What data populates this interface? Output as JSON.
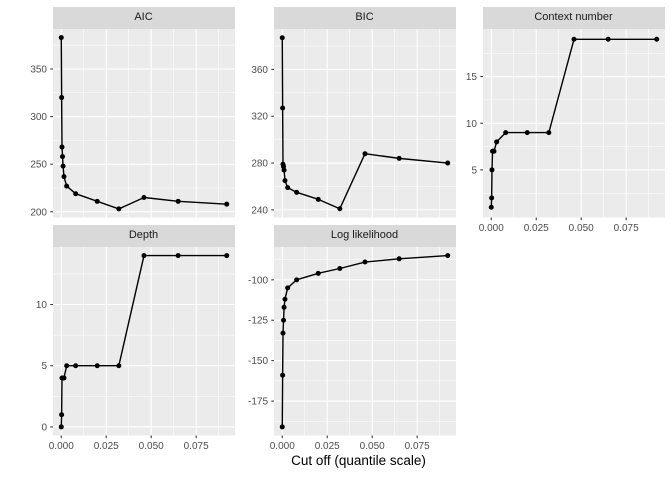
{
  "figure": {
    "colors": {
      "background": "#FFFFFF",
      "panel_background": "#EBEBEB",
      "strip_background": "#D9D9D9",
      "gridline": "#FFFFFF",
      "axis_text": "#4D4D4D",
      "strip_text": "#1A1A1A",
      "tick_mark": "#333333",
      "line": "#000000",
      "point": "#000000"
    }
  },
  "x_axis": {
    "title": "Cut off (quantile scale)",
    "ticks": [
      0,
      0.025,
      0.05,
      0.075
    ],
    "tick_labels": [
      "0.000",
      "0.025",
      "0.050",
      "0.075"
    ],
    "minor_ticks": [
      0.0125,
      0.0375,
      0.0625,
      0.0875
    ],
    "xlim": [
      -0.0046,
      0.0966
    ]
  },
  "chart_data": [
    {
      "type": "line",
      "title": "AIC",
      "x": [
        0,
        0.0002,
        0.0004,
        0.0007,
        0.001,
        0.0015,
        0.003,
        0.008,
        0.02,
        0.032,
        0.046,
        0.065,
        0.092
      ],
      "y": [
        383,
        320,
        268,
        258,
        248,
        237,
        227,
        219,
        211,
        203,
        215,
        211,
        208
      ],
      "y_ticks": [
        200,
        250,
        300,
        350
      ],
      "y_tick_labels": [
        "200",
        "250",
        "300",
        "350"
      ],
      "y_minor": [
        225,
        275,
        325,
        375
      ],
      "ylim": [
        194,
        392
      ],
      "x_axis_shown": false
    },
    {
      "type": "line",
      "title": "BIC",
      "x": [
        0,
        0.0002,
        0.0004,
        0.0007,
        0.001,
        0.0015,
        0.003,
        0.008,
        0.02,
        0.032,
        0.046,
        0.065,
        0.092
      ],
      "y": [
        387,
        327,
        279,
        277,
        274,
        265,
        259,
        255,
        249,
        241,
        288,
        284,
        280
      ],
      "y_ticks": [
        240,
        280,
        320,
        360
      ],
      "y_tick_labels": [
        "240",
        "280",
        "320",
        "360"
      ],
      "y_minor": [
        260,
        300,
        340,
        380
      ],
      "ylim": [
        233.5,
        394.5
      ],
      "x_axis_shown": false
    },
    {
      "type": "line",
      "title": "Context number",
      "x": [
        0,
        0.0002,
        0.0004,
        0.0007,
        0.001,
        0.0015,
        0.003,
        0.008,
        0.02,
        0.032,
        0.046,
        0.065,
        0.092
      ],
      "y": [
        1,
        2,
        5,
        7,
        7,
        7,
        8,
        9,
        9,
        9,
        19,
        19,
        19
      ],
      "y_ticks": [
        5,
        10,
        15
      ],
      "y_tick_labels": [
        "5",
        "10",
        "15"
      ],
      "y_minor": [
        2.5,
        7.5,
        12.5,
        17.5
      ],
      "ylim": [
        -0.1,
        20.1
      ],
      "x_axis_shown": true
    },
    {
      "type": "line",
      "title": "Depth",
      "x": [
        0,
        0.0002,
        0.0004,
        0.0007,
        0.001,
        0.0015,
        0.003,
        0.008,
        0.02,
        0.032,
        0.046,
        0.065,
        0.092
      ],
      "y": [
        0,
        1,
        4,
        4,
        4,
        4,
        5,
        5,
        5,
        5,
        14,
        14,
        14
      ],
      "y_ticks": [
        0,
        5,
        10
      ],
      "y_tick_labels": [
        "0",
        "5",
        "10"
      ],
      "y_minor": [
        2.5,
        7.5,
        12.5
      ],
      "ylim": [
        -0.7,
        14.7
      ],
      "x_axis_shown": true
    },
    {
      "type": "line",
      "title": "Log likelihood",
      "x": [
        0,
        0.0002,
        0.0004,
        0.0007,
        0.001,
        0.0015,
        0.003,
        0.008,
        0.02,
        0.032,
        0.046,
        0.065,
        0.092
      ],
      "y": [
        -191,
        -159,
        -133,
        -125,
        -117,
        -112,
        -105,
        -100,
        -96,
        -93,
        -89,
        -87,
        -85
      ],
      "y_ticks": [
        -175,
        -150,
        -125,
        -100
      ],
      "y_tick_labels": [
        "-175",
        "-150",
        "-125",
        "-100"
      ],
      "y_minor": [
        -187.5,
        -162.5,
        -137.5,
        -112.5,
        -87.5
      ],
      "ylim": [
        -196.3,
        -79.7
      ],
      "x_axis_shown": true
    }
  ]
}
